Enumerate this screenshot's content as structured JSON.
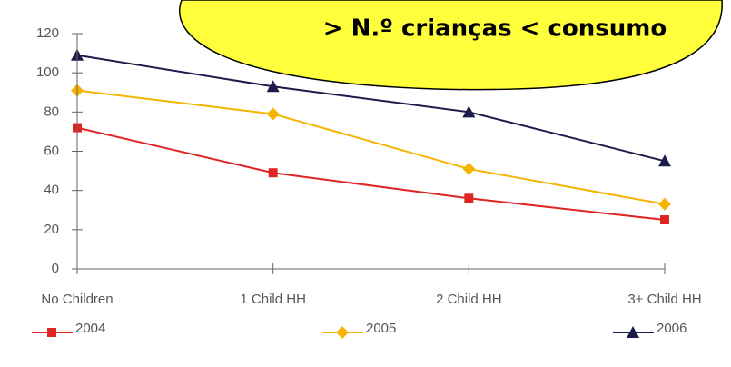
{
  "chart_data": {
    "type": "line",
    "annotation": "> N.º crianças < consumo",
    "categories": [
      "No Children",
      "1 Child HH",
      "2 Child HH",
      "3+ Child HH"
    ],
    "series": [
      {
        "name": "2004",
        "color": "#e02424",
        "marker": "square",
        "values": [
          72,
          49,
          36,
          25
        ]
      },
      {
        "name": "2005",
        "color": "#f5b400",
        "marker": "diamond",
        "values": [
          91,
          79,
          51,
          33
        ]
      },
      {
        "name": "2006",
        "color": "#1c1c4c",
        "marker": "triangle",
        "values": [
          109,
          93,
          80,
          55
        ]
      }
    ],
    "ylim": [
      0,
      120
    ],
    "yticks": [
      0,
      20,
      40,
      60,
      80,
      100,
      120
    ],
    "grid": false,
    "legend": "bottom"
  }
}
